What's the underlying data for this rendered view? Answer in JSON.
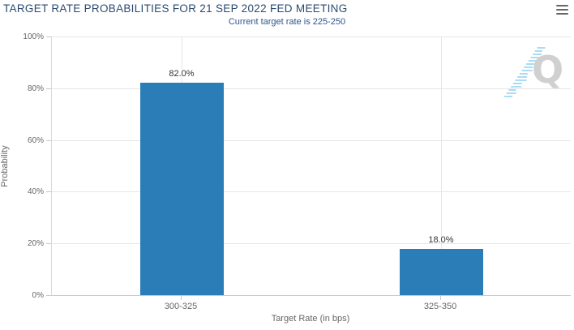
{
  "chart_data": {
    "type": "bar",
    "title": "TARGET RATE PROBABILITIES FOR 21 SEP 2022 FED MEETING",
    "subtitle": "Current target rate is 225-250",
    "categories": [
      "300-325",
      "325-350"
    ],
    "values": [
      82.0,
      18.0
    ],
    "data_labels": [
      "82.0%",
      "18.0%"
    ],
    "xlabel": "Target Rate (in bps)",
    "ylabel": "Probability",
    "ylim": [
      0,
      100
    ],
    "yticks": [
      "0%",
      "20%",
      "40%",
      "60%",
      "80%",
      "100%"
    ],
    "grid": true,
    "legend_position": "none"
  },
  "watermark": {
    "letter": "Q"
  },
  "menu": {
    "icon": "hamburger-icon"
  },
  "colors": {
    "bar": "#2b7db8",
    "title": "#2a4a70",
    "subtitle": "#30538c",
    "axis_text": "#666666",
    "data_label": "#333333",
    "gridline": "#e6e6e6",
    "axis_line": "#c9c9c9",
    "axis_line_light": "#d9d9d9",
    "menu_icon": "#666666",
    "watermark_q": "#d0d0d0",
    "watermark_dash": "#aadcf5"
  }
}
